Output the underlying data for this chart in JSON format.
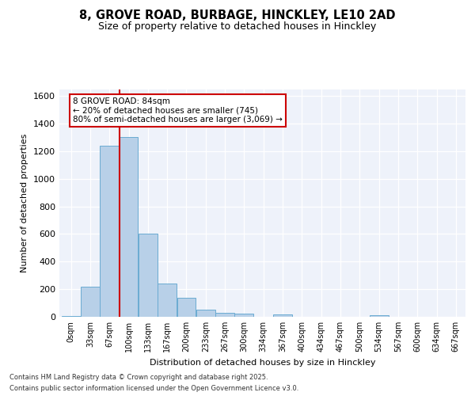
{
  "title_line1": "8, GROVE ROAD, BURBAGE, HINCKLEY, LE10 2AD",
  "title_line2": "Size of property relative to detached houses in Hinckley",
  "xlabel": "Distribution of detached houses by size in Hinckley",
  "ylabel": "Number of detached properties",
  "categories": [
    "0sqm",
    "33sqm",
    "67sqm",
    "100sqm",
    "133sqm",
    "167sqm",
    "200sqm",
    "233sqm",
    "267sqm",
    "300sqm",
    "334sqm",
    "367sqm",
    "400sqm",
    "434sqm",
    "467sqm",
    "500sqm",
    "534sqm",
    "567sqm",
    "600sqm",
    "634sqm",
    "667sqm"
  ],
  "values": [
    5,
    220,
    1240,
    1300,
    600,
    240,
    140,
    50,
    30,
    25,
    0,
    15,
    0,
    0,
    0,
    0,
    10,
    0,
    0,
    0,
    0
  ],
  "bar_color": "#b8d0e8",
  "bar_edge_color": "#6aabd2",
  "background_color": "#eef2fa",
  "grid_color": "#ffffff",
  "red_line_x": 84,
  "annotation_line1": "8 GROVE ROAD: 84sqm",
  "annotation_line2": "← 20% of detached houses are smaller (745)",
  "annotation_line3": "80% of semi-detached houses are larger (3,069) →",
  "annotation_box_color": "#ffffff",
  "annotation_box_edge_color": "#cc0000",
  "footer_line1": "Contains HM Land Registry data © Crown copyright and database right 2025.",
  "footer_line2": "Contains public sector information licensed under the Open Government Licence v3.0.",
  "ylim": [
    0,
    1650
  ],
  "bin_width": 33.33
}
